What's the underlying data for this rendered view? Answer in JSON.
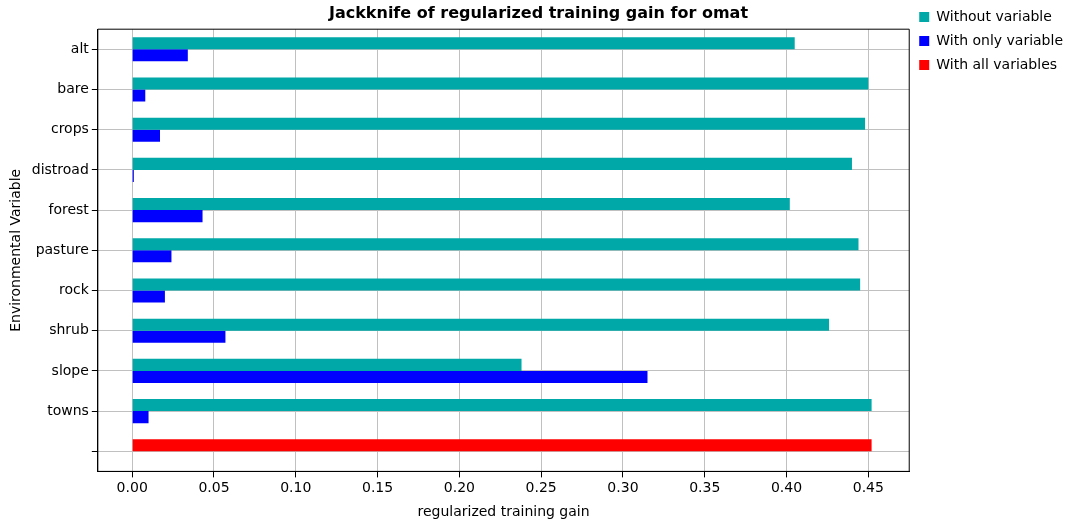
{
  "chart_data": {
    "type": "bar",
    "orientation": "horizontal",
    "title": "Jackknife of regularized training gain for omat",
    "xlabel": "regularized training gain",
    "ylabel": "Environmental Variable",
    "categories": [
      "alt",
      "bare",
      "crops",
      "distroad",
      "forest",
      "pasture",
      "rock",
      "shrub",
      "slope",
      "towns",
      null
    ],
    "series": [
      {
        "name": "Without variable",
        "color": "#00a8a8",
        "values": [
          0.405,
          0.45,
          0.448,
          0.44,
          0.402,
          0.444,
          0.445,
          0.426,
          0.238,
          0.452,
          null
        ]
      },
      {
        "name": "With only variable",
        "color": "#0000ff",
        "values": [
          0.034,
          0.008,
          0.017,
          0.001,
          0.043,
          0.024,
          0.02,
          0.057,
          0.315,
          0.01,
          null
        ]
      },
      {
        "name": "With all variables",
        "color": "#ff0000",
        "values": [
          null,
          null,
          null,
          null,
          null,
          null,
          null,
          null,
          null,
          null,
          0.452
        ]
      }
    ],
    "xlim": [
      -0.021,
      0.475
    ],
    "xticks": [
      {
        "value": 0,
        "label": "0.00"
      },
      {
        "value": 0.05,
        "label": "0.05"
      },
      {
        "value": 0.1,
        "label": "0.10"
      },
      {
        "value": 0.15,
        "label": "0.15"
      },
      {
        "value": 0.2,
        "label": "0.20"
      },
      {
        "value": 0.25,
        "label": "0.25"
      },
      {
        "value": 0.3,
        "label": "0.30"
      },
      {
        "value": 0.35,
        "label": "0.35"
      },
      {
        "value": 0.4,
        "label": "0.40"
      },
      {
        "value": 0.45,
        "label": "0.45"
      }
    ],
    "grid": true,
    "legend": "top right"
  }
}
